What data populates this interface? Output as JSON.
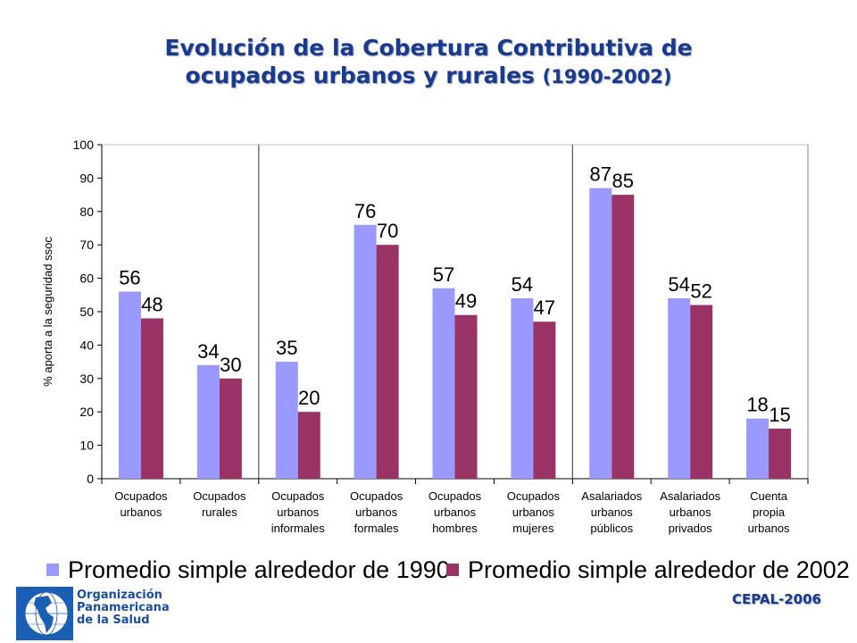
{
  "title": {
    "line1": "Evolución de la Cobertura Contributiva de",
    "line2": "ocupados urbanos y rurales",
    "years": "(1990-2002)"
  },
  "chart_data": {
    "type": "bar",
    "ylabel": "% aporta a la seguridad ssoc",
    "ylim": [
      0,
      100
    ],
    "yticks": [
      0,
      10,
      20,
      30,
      40,
      50,
      60,
      70,
      80,
      90,
      100
    ],
    "categories": [
      [
        "Ocupados",
        "urbanos"
      ],
      [
        "Ocupados",
        "rurales"
      ],
      [
        "Ocupados",
        "urbanos",
        "informales"
      ],
      [
        "Ocupados",
        "urbanos",
        "formales"
      ],
      [
        "Ocupados",
        "urbanos",
        "hombres"
      ],
      [
        "Ocupados",
        "urbanos",
        "mujeres"
      ],
      [
        "Asalariados",
        "urbanos",
        "públicos"
      ],
      [
        "Asalariados",
        "urbanos",
        "privados"
      ],
      [
        "Cuenta",
        "propia",
        "urbanos"
      ]
    ],
    "series": [
      {
        "name": "Promedio simple alrededor de 1990",
        "color": "#9999ff",
        "values": [
          56,
          34,
          35,
          76,
          57,
          54,
          87,
          54,
          18
        ]
      },
      {
        "name": "Promedio simple alrededor de 2002",
        "color": "#993366",
        "values": [
          48,
          30,
          20,
          70,
          49,
          47,
          85,
          52,
          15
        ]
      }
    ],
    "group_separators_after": [
      1,
      5
    ]
  },
  "footer": {
    "org_line1": "Organización",
    "org_line2": "Panamericana",
    "org_line3": "de la Salud",
    "source": "CEPAL-2006"
  }
}
